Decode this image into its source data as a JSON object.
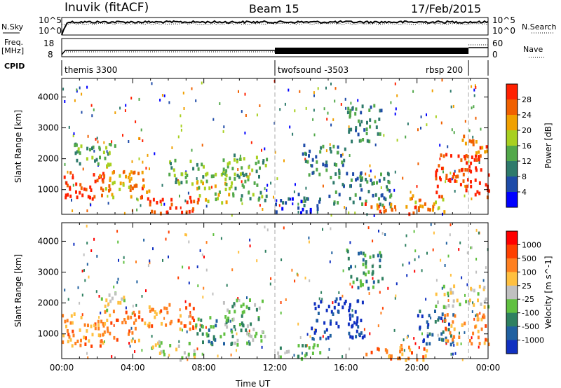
{
  "header": {
    "station": "Inuvik (fitACF)",
    "beam": "Beam 15",
    "date": "17/Feb/2015"
  },
  "top_panels": {
    "nsky_label": "N.Sky",
    "nsky_ticks": [
      "10^5",
      "10^0"
    ],
    "nsearch_label": "N.Search",
    "nsearch_ticks": [
      "10^5",
      "10^0"
    ],
    "freq_label": "Freq.",
    "freq_unit": "[MHz]",
    "freq_ticks": [
      "18",
      "8"
    ],
    "nave_label": "Nave",
    "nave_ticks": [
      "60",
      "0"
    ],
    "cpid_label": "CPID",
    "cpid_segments": [
      {
        "name": "themis 3300",
        "start_hour": 0.0
      },
      {
        "name": "twofsound -3503",
        "start_hour": 12.0
      },
      {
        "name": "rbsp 200",
        "start_hour": 22.9
      }
    ]
  },
  "chart_data": [
    {
      "type": "heatmap",
      "title": "Power",
      "ylabel": "Slant Range [km]",
      "xlabel": "",
      "ylim": [
        200,
        4600
      ],
      "yticks": [
        1000,
        2000,
        3000,
        4000
      ],
      "xlim": [
        0,
        24
      ],
      "colorbar": {
        "label": "Power [dB]",
        "ticks": [
          "4",
          "8",
          "12",
          "16",
          "20",
          "24",
          "28"
        ],
        "colors": [
          "#0000ff",
          "#1e4ba8",
          "#2e7a6b",
          "#52a84a",
          "#a8d020",
          "#f0a000",
          "#f06000",
          "#ff2000"
        ]
      },
      "regions": [
        {
          "t": [
            0.0,
            2.3
          ],
          "r": [
            700,
            1600
          ],
          "level": 7
        },
        {
          "t": [
            2.0,
            4.5
          ],
          "r": [
            800,
            1800
          ],
          "level": 5
        },
        {
          "t": [
            4.3,
            5.0
          ],
          "r": [
            700,
            1400
          ],
          "level": 6
        },
        {
          "t": [
            4.8,
            7.7
          ],
          "r": [
            250,
            800
          ],
          "level": 7
        },
        {
          "t": [
            6.0,
            8.0
          ],
          "r": [
            1200,
            2000
          ],
          "level": 3
        },
        {
          "t": [
            7.5,
            9.5
          ],
          "r": [
            600,
            1600
          ],
          "level": 4
        },
        {
          "t": [
            9.0,
            11.5
          ],
          "r": [
            700,
            2200
          ],
          "level": 3
        },
        {
          "t": [
            0.5,
            3.0
          ],
          "r": [
            1800,
            2600
          ],
          "level": 3
        },
        {
          "t": [
            12.0,
            14.5
          ],
          "r": [
            300,
            900
          ],
          "level": 1
        },
        {
          "t": [
            13.5,
            16.0
          ],
          "r": [
            1500,
            2500
          ],
          "level": 2
        },
        {
          "t": [
            15.0,
            18.5
          ],
          "r": [
            500,
            1600
          ],
          "level": 2
        },
        {
          "t": [
            16.0,
            18.0
          ],
          "r": [
            2500,
            3800
          ],
          "level": 2
        },
        {
          "t": [
            17.0,
            20.0
          ],
          "r": [
            250,
            600
          ],
          "level": 6
        },
        {
          "t": [
            19.5,
            21.5
          ],
          "r": [
            300,
            900
          ],
          "level": 5
        },
        {
          "t": [
            21.0,
            24.0
          ],
          "r": [
            800,
            2200
          ],
          "level": 7
        },
        {
          "t": [
            22.5,
            24.0
          ],
          "r": [
            2000,
            2800
          ],
          "level": 6
        }
      ]
    },
    {
      "type": "heatmap",
      "title": "Velocity",
      "ylabel": "Slant Range [km]",
      "xlabel": "Time UT",
      "ylim": [
        200,
        4600
      ],
      "yticks": [
        1000,
        2000,
        3000,
        4000
      ],
      "xlim": [
        0,
        24
      ],
      "xticks": [
        "00:00",
        "04:00",
        "08:00",
        "12:00",
        "16:00",
        "20:00",
        "00:00"
      ],
      "colorbar": {
        "label": "Velocity [m s^-1]",
        "ticks": [
          "1000",
          "500",
          "100",
          "25",
          "-25",
          "-100",
          "-500",
          "-1000"
        ],
        "colors": [
          "#1030c0",
          "#2060a0",
          "#2e8060",
          "#60c040",
          "#c0c0c0",
          "#ffc040",
          "#ff8020",
          "#ff4000",
          "#ff0000"
        ]
      },
      "regions": [
        {
          "t": [
            0.0,
            2.5
          ],
          "r": [
            600,
            1700
          ],
          "level": 6
        },
        {
          "t": [
            2.0,
            4.5
          ],
          "r": [
            800,
            1800
          ],
          "level": 6
        },
        {
          "t": [
            5.0,
            7.5
          ],
          "r": [
            200,
            800
          ],
          "level": 4
        },
        {
          "t": [
            4.5,
            7.5
          ],
          "r": [
            1200,
            2000
          ],
          "level": 6
        },
        {
          "t": [
            7.5,
            9.5
          ],
          "r": [
            700,
            1600
          ],
          "level": 2
        },
        {
          "t": [
            9.0,
            11.5
          ],
          "r": [
            700,
            2200
          ],
          "level": 3
        },
        {
          "t": [
            2.0,
            3.5
          ],
          "r": [
            1800,
            2400
          ],
          "level": 4
        },
        {
          "t": [
            12.0,
            14.5
          ],
          "r": [
            200,
            700
          ],
          "level": 3
        },
        {
          "t": [
            14.0,
            17.0
          ],
          "r": [
            900,
            2200
          ],
          "level": 0
        },
        {
          "t": [
            16.0,
            18.0
          ],
          "r": [
            2500,
            3800
          ],
          "level": 2
        },
        {
          "t": [
            17.0,
            20.5
          ],
          "r": [
            200,
            700
          ],
          "level": 6
        },
        {
          "t": [
            20.0,
            22.0
          ],
          "r": [
            700,
            1800
          ],
          "level": 1
        },
        {
          "t": [
            21.5,
            24.0
          ],
          "r": [
            700,
            1700
          ],
          "level": 6
        },
        {
          "t": [
            21.0,
            24.0
          ],
          "r": [
            1900,
            2600
          ],
          "level": 4
        }
      ]
    }
  ]
}
